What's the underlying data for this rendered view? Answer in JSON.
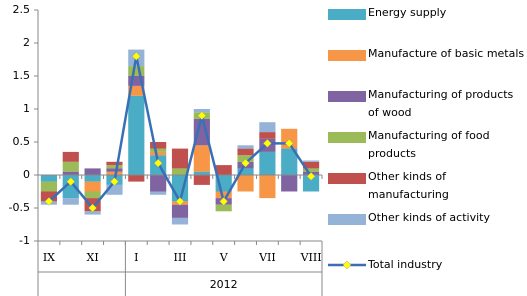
{
  "chart_data": {
    "type": "bar",
    "categories": [
      "IX",
      null,
      "XI",
      null,
      "I",
      null,
      "III",
      null,
      "V",
      null,
      "VII",
      null,
      "VIII"
    ],
    "group_label": "2012",
    "ylim": [
      -1,
      2.5
    ],
    "yticks": [
      -1,
      -0.5,
      0,
      0.5,
      1,
      1.5,
      2,
      2.5
    ],
    "series": [
      {
        "name": "Energy supply",
        "color": "#4bacc6",
        "values": [
          -0.1,
          -0.35,
          -0.1,
          -0.15,
          1.2,
          0.3,
          -0.4,
          0.05,
          -0.25,
          0.1,
          0.35,
          0.4,
          -0.25
        ]
      },
      {
        "name": "Manufacture of basic metals",
        "color": "#f79646",
        "values": [
          0,
          0,
          -0.15,
          0.05,
          0.15,
          0.05,
          -0.05,
          0.4,
          -0.1,
          -0.25,
          -0.35,
          0.3,
          0
        ]
      },
      {
        "name": "Manufacturing of products of wood",
        "color": "#8064a2",
        "values": [
          0,
          0.05,
          0.1,
          0.05,
          0.15,
          -0.25,
          -0.2,
          0.4,
          -0.1,
          0.1,
          0.2,
          -0.25,
          0.05
        ]
      },
      {
        "name": "Manufacturing of food products",
        "color": "#9bbb59",
        "values": [
          -0.15,
          0.15,
          -0.1,
          0.05,
          0.15,
          0.05,
          0.1,
          0.1,
          -0.1,
          0.1,
          0,
          0,
          0.05
        ]
      },
      {
        "name": "Other kinds of manufacturing",
        "color": "#c0504d",
        "values": [
          -0.15,
          0.15,
          -0.2,
          0.05,
          -0.1,
          0.1,
          0.3,
          -0.15,
          0.15,
          0.1,
          0.1,
          0,
          0.1
        ]
      },
      {
        "name": "Other kinds of activity",
        "color": "#95b3d7",
        "values": [
          -0.05,
          -0.1,
          -0.05,
          -0.15,
          0.25,
          -0.05,
          -0.1,
          0.05,
          0,
          0.05,
          0.15,
          0,
          0.02
        ]
      }
    ],
    "line": {
      "name": "Total industry",
      "color": "#3a6fb5",
      "marker_color": "#ffff00",
      "values": [
        -0.4,
        -0.1,
        -0.5,
        -0.1,
        1.8,
        0.18,
        -0.4,
        0.9,
        -0.4,
        0.18,
        0.48,
        0.48,
        -0.02
      ]
    }
  }
}
